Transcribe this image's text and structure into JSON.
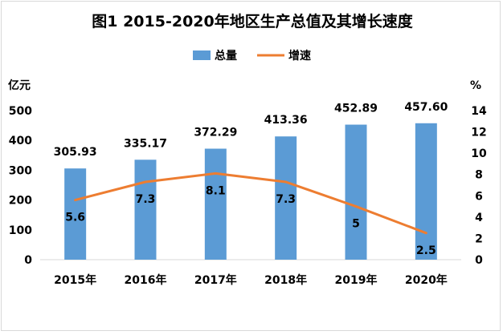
{
  "chart_data": {
    "type": "bar",
    "title": "图1  2015-2020年地区生产总值及其增长速度",
    "categories": [
      "2015年",
      "2016年",
      "2017年",
      "2018年",
      "2019年",
      "2020年"
    ],
    "series": [
      {
        "name": "总量",
        "type": "bar",
        "axis": "left",
        "values": [
          305.93,
          335.17,
          372.29,
          413.36,
          452.89,
          457.6
        ],
        "labels": [
          "305.93",
          "335.17",
          "372.29",
          "413.36",
          "452.89",
          "457.60"
        ],
        "color": "#5b9bd5"
      },
      {
        "name": "增速",
        "type": "line",
        "axis": "right",
        "values": [
          5.6,
          7.3,
          8.1,
          7.3,
          5,
          2.5
        ],
        "labels": [
          "5.6",
          "7.3",
          "8.1",
          "7.3",
          "5",
          "2.5"
        ],
        "color": "#ed7d31"
      }
    ],
    "yAxisLeft": {
      "unit": "亿元",
      "min": 0,
      "max": 500,
      "ticks": [
        "0",
        "100",
        "200",
        "300",
        "400",
        "500"
      ]
    },
    "yAxisRight": {
      "unit": "%",
      "min": 0,
      "max": 14,
      "ticks": [
        "0",
        "2",
        "4",
        "6",
        "8",
        "10",
        "12",
        "14"
      ]
    },
    "grid": false,
    "legend_position": "top"
  }
}
